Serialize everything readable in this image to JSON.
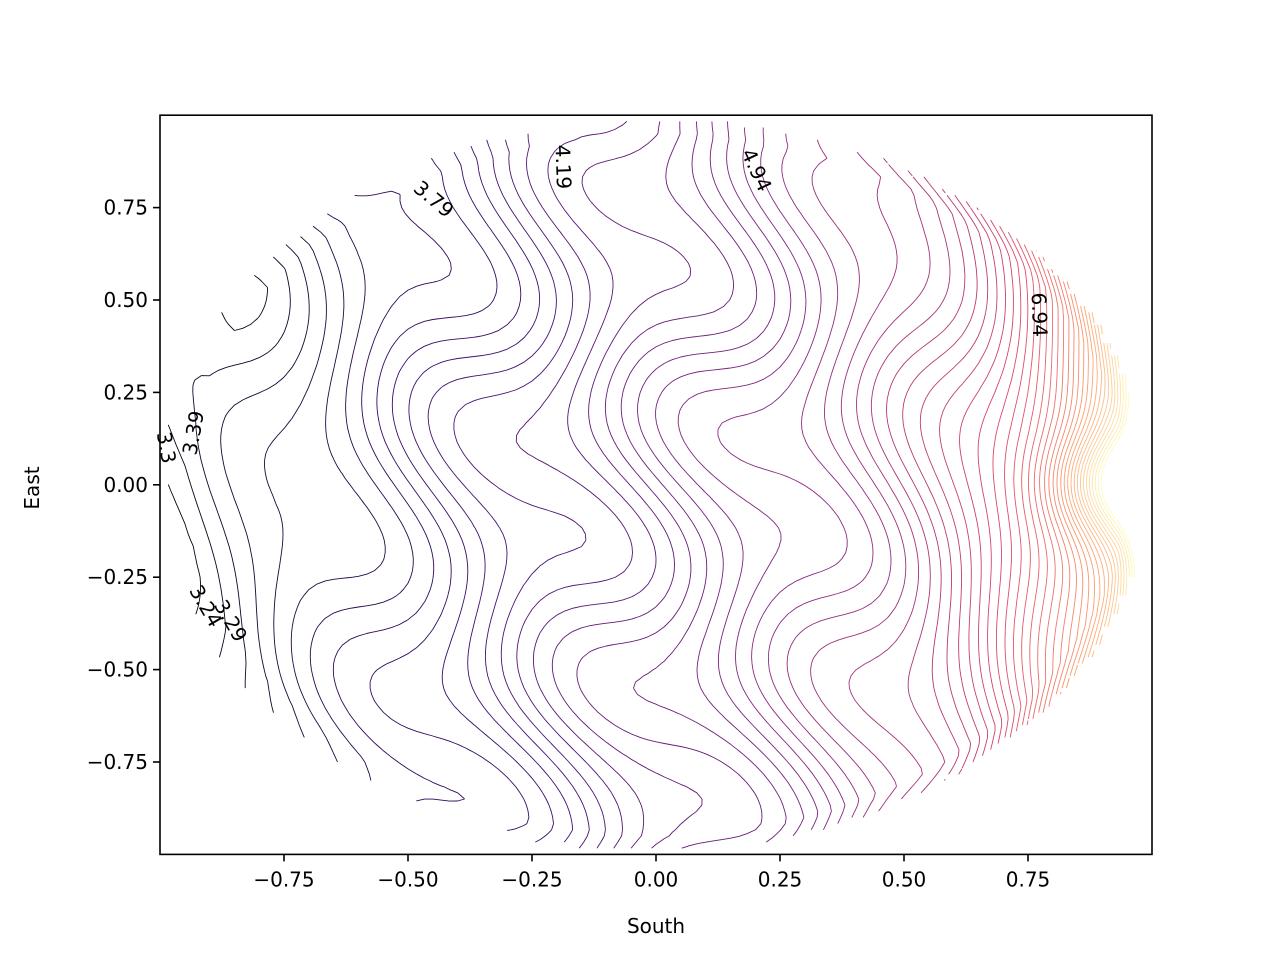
{
  "chart_data": {
    "type": "contour",
    "title": "",
    "xlabel": "South",
    "ylabel": "East",
    "xlim": [
      -1.0,
      1.0
    ],
    "ylim": [
      -1.0,
      1.0
    ],
    "xticks": [
      -0.75,
      -0.5,
      -0.25,
      0.0,
      0.25,
      0.5,
      0.75
    ],
    "xtick_labels": [
      "−0.75",
      "−0.50",
      "−0.25",
      "0.00",
      "0.25",
      "0.50",
      "0.75"
    ],
    "yticks": [
      -0.75,
      -0.5,
      -0.25,
      0.0,
      0.25,
      0.5,
      0.75
    ],
    "ytick_labels": [
      "−0.75",
      "−0.50",
      "−0.25",
      "0.00",
      "0.25",
      "0.50",
      "0.75"
    ],
    "colormap": "magma",
    "colors": [
      "#000004",
      "#3b0f70",
      "#8c2981",
      "#de4968",
      "#fe9f6d",
      "#fcfdbf"
    ],
    "level_range": [
      3.2,
      7.6
    ],
    "level_count": 60,
    "domain": "unit disk",
    "grid": false,
    "contour_labels": [
      {
        "text": "4.19",
        "x": -0.19,
        "y": 0.86,
        "angle": 88
      },
      {
        "text": "4.94",
        "x": 0.2,
        "y": 0.85,
        "angle": 65
      },
      {
        "text": "3.79",
        "x": -0.45,
        "y": 0.77,
        "angle": 40
      },
      {
        "text": "6.94",
        "x": 0.77,
        "y": 0.46,
        "angle": 88
      },
      {
        "text": "3.39",
        "x": -0.93,
        "y": 0.14,
        "angle": -80
      },
      {
        "text": "3.3",
        "x": -0.99,
        "y": 0.1,
        "angle": 80
      },
      {
        "text": "3.29",
        "x": -0.86,
        "y": -0.37,
        "angle": 60
      },
      {
        "text": "3.24",
        "x": -0.91,
        "y": -0.33,
        "angle": 60
      }
    ]
  }
}
